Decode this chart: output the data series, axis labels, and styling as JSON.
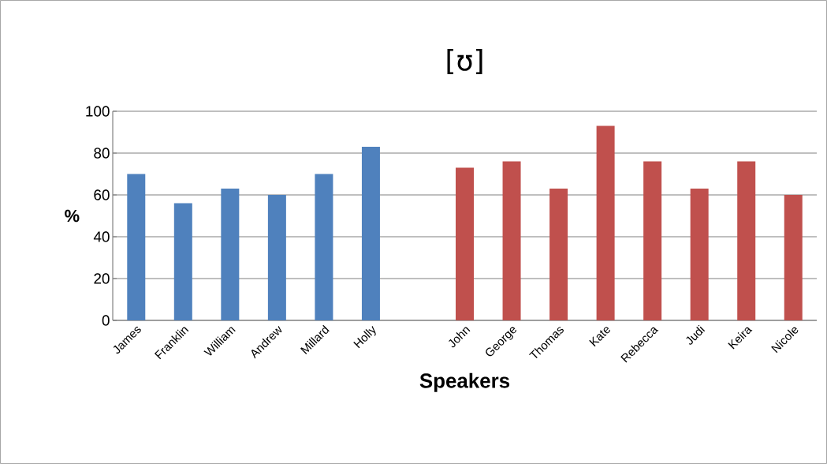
{
  "chart_data": {
    "type": "bar",
    "title": "[ʊ]",
    "xlabel": "Speakers",
    "ylabel": "%",
    "categories": [
      "James",
      "Franklin",
      "William",
      "Andrew",
      "Millard",
      "Holly",
      null,
      "John",
      "George",
      "Thomas",
      "Kate",
      "Rebecca",
      "Judi",
      "Keira",
      "Nicole"
    ],
    "series": [
      {
        "color": "#4f81bd",
        "values": [
          70,
          56,
          63,
          60,
          70,
          83,
          null,
          null,
          null,
          null,
          null,
          null,
          null,
          null,
          null
        ]
      },
      {
        "color": "#c0504d",
        "values": [
          null,
          null,
          null,
          null,
          null,
          null,
          null,
          73,
          76,
          63,
          93,
          76,
          63,
          76,
          60
        ]
      }
    ],
    "ylim": [
      0,
      100
    ],
    "yticks": [
      0,
      20,
      40,
      60,
      80,
      100
    ],
    "grid": "y"
  }
}
